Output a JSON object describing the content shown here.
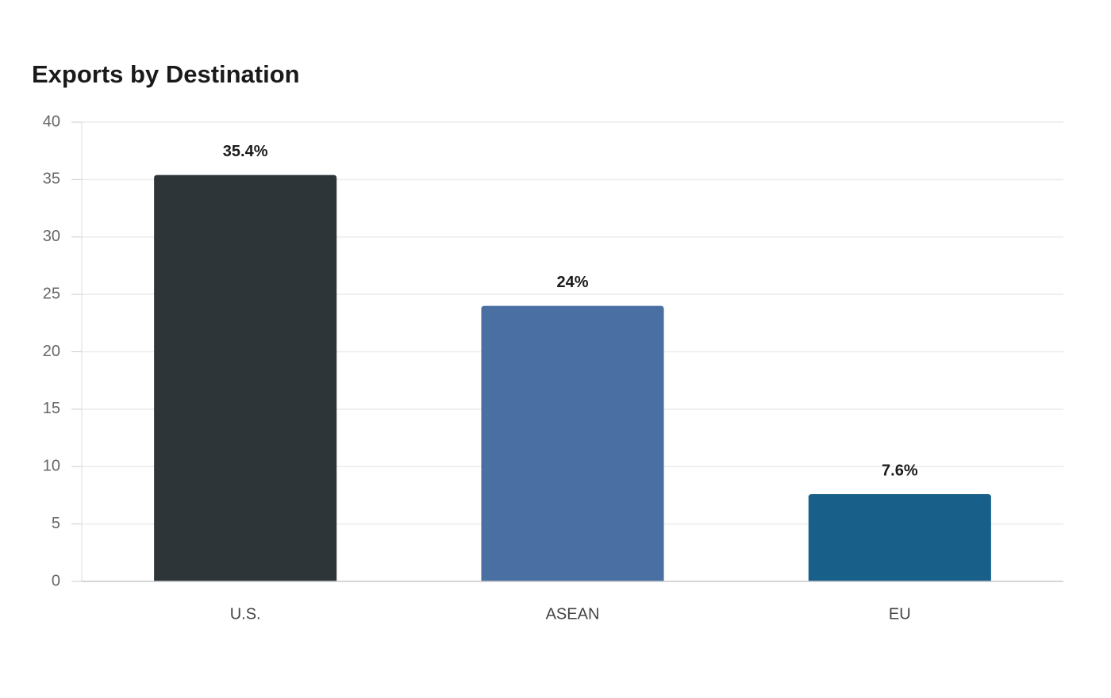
{
  "chart_data": {
    "type": "bar",
    "title": "Exports by Destination",
    "categories": [
      "U.S.",
      "ASEAN",
      "EU"
    ],
    "values": [
      35.4,
      24,
      7.6
    ],
    "value_labels": [
      "35.4%",
      "24%",
      "7.6%"
    ],
    "colors": [
      "#2e3538",
      "#4a6fa3",
      "#186089"
    ],
    "ylim": [
      0,
      40
    ],
    "yticks": [
      0,
      5,
      10,
      15,
      20,
      25,
      30,
      35,
      40
    ],
    "grid": true
  }
}
